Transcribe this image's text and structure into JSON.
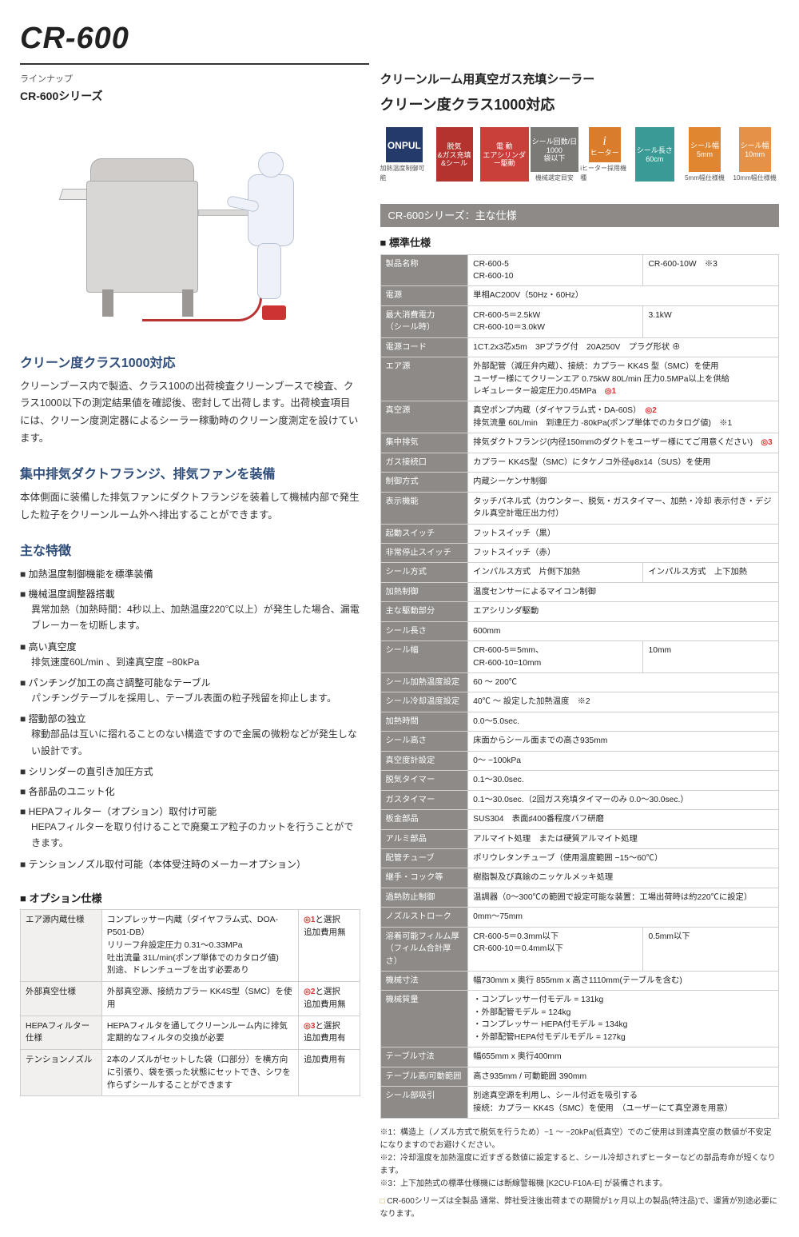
{
  "title": "CR-600",
  "lineup_label": "ラインナップ",
  "lineup_series": "CR-600シリーズ",
  "right_header_1": "クリーンルーム用真空ガス充填シーラー",
  "right_header_2": "クリーン度クラス1000対応",
  "badges": [
    {
      "bg": "b-navy",
      "line1": "ONPUL",
      "cap": "加熱温度制御可能"
    },
    {
      "bg": "b-red",
      "line1": "脱気\n&ガス充填\n&シール",
      "cap": ""
    },
    {
      "bg": "b-red2",
      "line1": "電 動\nエアシリンダー駆動",
      "cap": ""
    },
    {
      "bg": "b-gray",
      "line1": "シール回数/日\n1000\n袋以下",
      "cap": "機械選定目安"
    },
    {
      "bg": "b-orange",
      "line1": "i\nヒーター",
      "cap": "iヒーター採用機種",
      "icon": true
    },
    {
      "bg": "b-teal",
      "line1": "シール長さ\n60cm",
      "cap": ""
    },
    {
      "bg": "b-or2",
      "line1": "シール幅\n5mm",
      "cap": "5mm幅仕様機"
    },
    {
      "bg": "b-or3",
      "line1": "シール幅\n10mm",
      "cap": "10mm幅仕様機"
    }
  ],
  "left": {
    "h1": "クリーン度クラス1000対応",
    "p1": "クリーンブース内で製造、クラス100の出荷検査クリーンブースで検査、クラス1000以下の測定結果値を確認後、密封して出荷します。出荷検査項目には、クリーン度測定器によるシーラー稼動時のクリーン度測定を設けています。",
    "h2": "集中排気ダクトフランジ、排気ファンを装備",
    "p2": "本体側面に装備した排気ファンにダクトフランジを装着して機械内部で発生した粒子をクリーンルーム外へ排出することができます。",
    "h3": "主な特徴",
    "features": [
      {
        "t": "加熱温度制御機能を標準装備"
      },
      {
        "t": "機械温度調整器搭載",
        "sub": "異常加熱（加熱時間：4秒以上、加熱温度220℃以上）が発生した場合、漏電ブレーカーを切断します。"
      },
      {
        "t": "高い真空度",
        "sub": "排気速度60L/min 、到達真空度 −80kPa"
      },
      {
        "t": "パンチング加工の高さ調整可能なテーブル",
        "sub": "パンチングテーブルを採用し、テーブル表面の粒子残留を抑止します。"
      },
      {
        "t": "摺動部の独立",
        "sub": "稼動部品は互いに摺れることのない構造ですので金属の微粉などが発生しない設計です。"
      },
      {
        "t": "シリンダーの直引き加圧方式"
      },
      {
        "t": "各部品のユニット化"
      },
      {
        "t": "HEPAフィルター（オプション）取付け可能",
        "sub": "HEPAフィルターを取り付けることで廃棄エア粒子のカットを行うことができます。"
      },
      {
        "t": "テンションノズル取付可能（本体受注時のメーカーオプション）"
      }
    ],
    "option_h": "オプション仕様",
    "options": [
      {
        "name": "エア源内蔵仕様",
        "desc": "コンプレッサー内蔵（ダイヤフラム式、DOA-P501-DB）\nリリーフ弁設定圧力 0.31～0.33MPa\n吐出流量 31L/min(ポンプ単体でのカタログ値)\n別途、ドレンチューブを出す必要あり",
        "mark": "◎1と選択\n追加費用無"
      },
      {
        "name": "外部真空仕様",
        "desc": "外部真空源、接続カプラー KK4S型（SMC）を使用",
        "mark": "◎2と選択\n追加費用無"
      },
      {
        "name": "HEPAフィルター仕様",
        "desc": "HEPAフィルタを通してクリーンルーム内に排気\n定期的なフィルタの交換が必要",
        "mark": "◎3と選択\n追加費用有"
      },
      {
        "name": "テンションノズル",
        "desc": "2本のノズルがセットした袋（口部分）を横方向に引張り、袋を張った状態にセットでき、シワを作らずシールすることができます",
        "mark": "追加費用有"
      }
    ]
  },
  "spec_banner": "CR-600シリーズ：主な仕様",
  "spec_sub": "標準仕様",
  "spec_rows": [
    {
      "h": "製品名称",
      "c1": "CR-600-5\nCR-600-10",
      "c2": "CR-600-10W　※3"
    },
    {
      "h": "電源",
      "c": "単相AC200V（50Hz・60Hz）"
    },
    {
      "h": "最大消費電力\n（シール時）",
      "c1": "CR-600-5＝2.5kW\nCR-600-10＝3.0kW",
      "c2": "3.1kW"
    },
    {
      "h": "電源コード",
      "c": "1CT.2x3芯x5m　3Pプラグ付　20A250V　プラグ形状 ⊕"
    },
    {
      "h": "エア源",
      "c": "外部配管（減圧弁内蔵）、接続：カプラー KK4S 型（SMC）を使用\nユーザー様にてクリーンエア 0.75kW 80L/min 圧力0.5MPa以上を供給\nレギュレーター設定圧力0.45MPa　◎1"
    },
    {
      "h": "真空源",
      "c": "真空ポンプ内蔵（ダイヤフラム式・DA-60S）　◎2\n排気流量 60L/min　到達圧力 -80kPa(ポンプ単体でのカタログ値)　※1"
    },
    {
      "h": "集中排気",
      "c": "排気ダクトフランジ(内径150mmのダクトをユーザー様にてご用意ください)　◎3"
    },
    {
      "h": "ガス接続口",
      "c": "カプラー KK4S型（SMC）にタケノコ外径φ8x14（SUS）を使用"
    },
    {
      "h": "制御方式",
      "c": "内蔵シーケンサ制御"
    },
    {
      "h": "表示機能",
      "c": "タッチパネル式（カウンター、脱気・ガスタイマー、加熱・冷却 表示付き・デジタル真空計電圧出力付）"
    },
    {
      "h": "起動スイッチ",
      "c": "フットスイッチ（黒）"
    },
    {
      "h": "非常停止スイッチ",
      "c": "フットスイッチ（赤）"
    },
    {
      "h": "シール方式",
      "c1": "インパルス方式　片側下加熱",
      "c2": "インパルス方式　上下加熱"
    },
    {
      "h": "加熱制御",
      "c": "温度センサーによるマイコン制御"
    },
    {
      "h": "主な駆動部分",
      "c": "エアシリンダ駆動"
    },
    {
      "h": "シール長さ",
      "c": "600mm"
    },
    {
      "h": "シール幅",
      "c1": "CR-600-5＝5mm、\nCR-600-10=10mm",
      "c2": "10mm"
    },
    {
      "h": "シール加熱温度設定",
      "c": "60 ～ 200℃"
    },
    {
      "h": "シール冷却温度設定",
      "c": "40℃ ～ 設定した加熱温度　※2"
    },
    {
      "h": "加熱時間",
      "c": "0.0～5.0sec."
    },
    {
      "h": "シール高さ",
      "c": "床面からシール面までの高さ935mm"
    },
    {
      "h": "真空度計設定",
      "c": "0～ −100kPa"
    },
    {
      "h": "脱気タイマー",
      "c": "0.1～30.0sec."
    },
    {
      "h": "ガスタイマー",
      "c": "0.1～30.0sec.（2回ガス充填タイマーのみ 0.0～30.0sec.）"
    },
    {
      "h": "板金部品",
      "c": "SUS304　表面♯400番程度バフ研磨"
    },
    {
      "h": "アルミ部品",
      "c": "アルマイト処理　または硬質アルマイト処理"
    },
    {
      "h": "配管チューブ",
      "c": "ポリウレタンチューブ（使用温度範囲 −15～60℃）"
    },
    {
      "h": "継手・コック等",
      "c": "樹脂製及び真鍮のニッケルメッキ処理"
    },
    {
      "h": "過熱防止制御",
      "c": "温調器（0～300℃の範囲で設定可能な装置：工場出荷時は約220℃に設定）"
    },
    {
      "h": "ノズルストローク",
      "c": "0mm～75mm"
    },
    {
      "h": "溶着可能フィルム厚\n（フィルム合計厚さ）",
      "c1": "CR-600-5＝0.3mm以下\nCR-600-10＝0.4mm以下",
      "c2": "0.5mm以下"
    },
    {
      "h": "機械寸法",
      "c": "幅730mm x 奥行 855mm x 高さ1110mm(テーブルを含む)"
    },
    {
      "h": "機械質量",
      "c": "・コンプレッサー付モデル = 131kg\n・外部配管モデル = 124kg\n・コンプレッサー HEPA付モデル = 134kg\n・外部配管HEPA付モデルモデル = 127kg"
    },
    {
      "h": "テーブル寸法",
      "c": "幅655mm x 奥行400mm"
    },
    {
      "h": "テーブル高/可動範囲",
      "c": "高さ935mm / 可動範囲 390mm"
    },
    {
      "h": "シール部吸引",
      "c": "別途真空源を利用し、シール付近を吸引する\n接続：カプラー KK4S（SMC）を使用　（ユーザーにて真空源を用意）"
    }
  ],
  "notes": [
    "※1：構造上（ノズル方式で脱気を行うため）−1 ～ −20kPa(低真空）でのご使用は到達真空度の数値が不安定になりますのでお避けください。",
    "※2：冷却温度を加熱温度に近すぎる数値に設定すると、シール冷却されずヒーターなどの部品寿命が短くなります。",
    "※3：上下加熱式の標準仕様機には断線警報機 [K2CU-F10A-E] が装備されます。"
  ],
  "note_box": "CR-600シリーズは全製品 通常、弊社受注後出荷までの期間が1ヶ月以上の製品(特注品)で、運賃が別途必要になります。"
}
